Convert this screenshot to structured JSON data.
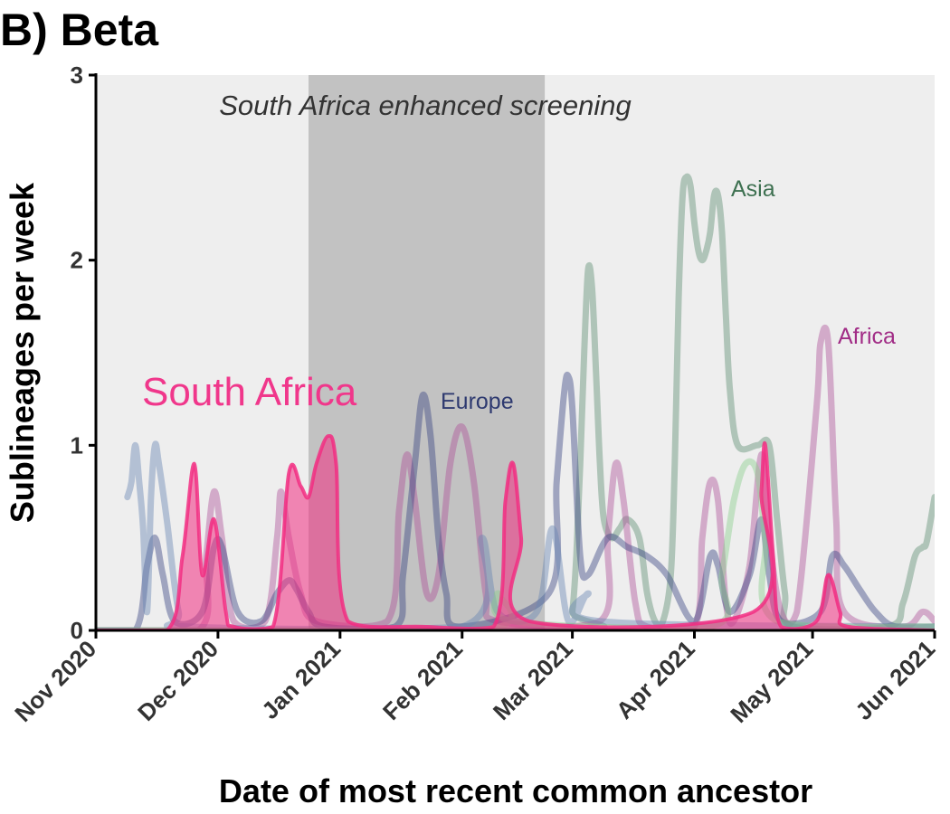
{
  "panel_title": "B) Beta",
  "chart_data": {
    "type": "line",
    "title": "",
    "xlabel": "Date of most recent common ancestor",
    "ylabel": "Sublineages per week",
    "x_range": [
      "2020-10-31",
      "2021-06-01"
    ],
    "ylim": [
      0,
      3
    ],
    "yticks": [
      0,
      1,
      2,
      3
    ],
    "xticks": [
      {
        "date": "2020-10-31",
        "label": "Nov 2020"
      },
      {
        "date": "2020-12-01",
        "label": "Dec 2020"
      },
      {
        "date": "2021-01-01",
        "label": "Jan 2021"
      },
      {
        "date": "2021-02-01",
        "label": "Feb 2021"
      },
      {
        "date": "2021-03-01",
        "label": "Mar 2021"
      },
      {
        "date": "2021-04-01",
        "label": "Apr 2021"
      },
      {
        "date": "2021-05-01",
        "label": "May 2021"
      },
      {
        "date": "2021-06-01",
        "label": "Jun 2021"
      }
    ],
    "shaded_region": {
      "start": "2020-12-24",
      "end": "2021-02-22",
      "label": "South Africa enhanced screening"
    },
    "background_color": "#eeeeee",
    "shade_color": "#c2c2c2",
    "grid": false,
    "series": [
      {
        "name": "Asia",
        "color": "#6f9a82",
        "opacity": 0.5,
        "width": 7,
        "points": [
          [
            "2020-10-31",
            0
          ],
          [
            "2021-02-28",
            0
          ],
          [
            "2021-03-01",
            0.1
          ],
          [
            "2021-03-02",
            0.4
          ],
          [
            "2021-03-03",
            0.9
          ],
          [
            "2021-03-04",
            1.5
          ],
          [
            "2021-03-05",
            1.95
          ],
          [
            "2021-03-06",
            1.85
          ],
          [
            "2021-03-07",
            1.4
          ],
          [
            "2021-03-08",
            0.9
          ],
          [
            "2021-03-09",
            0.6
          ],
          [
            "2021-03-11",
            0.5
          ],
          [
            "2021-03-13",
            0.55
          ],
          [
            "2021-03-15",
            0.6
          ],
          [
            "2021-03-18",
            0.5
          ],
          [
            "2021-03-20",
            0.2
          ],
          [
            "2021-03-22",
            0.05
          ],
          [
            "2021-03-24",
            0.05
          ],
          [
            "2021-03-26",
            0.3
          ],
          [
            "2021-03-27",
            0.9
          ],
          [
            "2021-03-28",
            1.8
          ],
          [
            "2021-03-29",
            2.35
          ],
          [
            "2021-03-30",
            2.45
          ],
          [
            "2021-03-31",
            2.4
          ],
          [
            "2021-04-01",
            2.2
          ],
          [
            "2021-04-02",
            2.05
          ],
          [
            "2021-04-03",
            2.0
          ],
          [
            "2021-04-04",
            2.05
          ],
          [
            "2021-04-05",
            2.15
          ],
          [
            "2021-04-06",
            2.35
          ],
          [
            "2021-04-07",
            2.35
          ],
          [
            "2021-04-08",
            2.15
          ],
          [
            "2021-04-09",
            1.7
          ],
          [
            "2021-04-10",
            1.3
          ],
          [
            "2021-04-12",
            1.0
          ],
          [
            "2021-04-17",
            1.0
          ],
          [
            "2021-04-20",
            1.0
          ],
          [
            "2021-04-22",
            0.6
          ],
          [
            "2021-04-24",
            0.2
          ],
          [
            "2021-04-26",
            0.02
          ],
          [
            "2021-05-20",
            0.02
          ],
          [
            "2021-05-24",
            0.15
          ],
          [
            "2021-05-27",
            0.4
          ],
          [
            "2021-05-29",
            0.45
          ],
          [
            "2021-05-30",
            0.48
          ],
          [
            "2021-06-01",
            0.72
          ]
        ]
      },
      {
        "name": "Africa",
        "color": "#b0569c",
        "opacity": 0.45,
        "width": 7,
        "points": [
          [
            "2020-10-31",
            0
          ],
          [
            "2020-11-26",
            0
          ],
          [
            "2020-11-28",
            0.4
          ],
          [
            "2020-11-30",
            0.75
          ],
          [
            "2020-12-02",
            0.5
          ],
          [
            "2020-12-05",
            0.05
          ],
          [
            "2020-12-13",
            0.05
          ],
          [
            "2020-12-16",
            0.5
          ],
          [
            "2020-12-17",
            0.75
          ],
          [
            "2020-12-19",
            0.5
          ],
          [
            "2020-12-22",
            0.2
          ],
          [
            "2020-12-26",
            0.05
          ],
          [
            "2021-01-13",
            0.05
          ],
          [
            "2021-01-16",
            0.65
          ],
          [
            "2021-01-18",
            0.95
          ],
          [
            "2021-01-20",
            0.7
          ],
          [
            "2021-01-23",
            0.2
          ],
          [
            "2021-01-26",
            0.3
          ],
          [
            "2021-01-29",
            0.9
          ],
          [
            "2021-02-01",
            1.1
          ],
          [
            "2021-02-04",
            0.8
          ],
          [
            "2021-02-07",
            0.2
          ],
          [
            "2021-02-10",
            0.05
          ],
          [
            "2021-03-08",
            0.05
          ],
          [
            "2021-03-10",
            0.5
          ],
          [
            "2021-03-12",
            0.9
          ],
          [
            "2021-03-14",
            0.7
          ],
          [
            "2021-03-17",
            0.15
          ],
          [
            "2021-03-20",
            0.02
          ],
          [
            "2021-04-01",
            0.02
          ],
          [
            "2021-04-03",
            0.5
          ],
          [
            "2021-04-05",
            0.8
          ],
          [
            "2021-04-07",
            0.7
          ],
          [
            "2021-04-09",
            0.15
          ],
          [
            "2021-04-11",
            0.05
          ],
          [
            "2021-04-15",
            0.35
          ],
          [
            "2021-04-18",
            0.95
          ],
          [
            "2021-04-20",
            0.5
          ],
          [
            "2021-04-23",
            0.1
          ],
          [
            "2021-04-27",
            0.1
          ],
          [
            "2021-05-02",
            1.2
          ],
          [
            "2021-05-03",
            1.55
          ],
          [
            "2021-05-05",
            1.55
          ],
          [
            "2021-05-07",
            0.6
          ],
          [
            "2021-05-09",
            0.1
          ],
          [
            "2021-05-24",
            0.02
          ],
          [
            "2021-05-29",
            0.1
          ],
          [
            "2021-06-01",
            0.05
          ]
        ]
      },
      {
        "name": "Europe",
        "color": "#3e4a84",
        "opacity": 0.45,
        "width": 7,
        "points": [
          [
            "2020-10-31",
            0
          ],
          [
            "2020-11-10",
            0
          ],
          [
            "2020-11-13",
            0.35
          ],
          [
            "2020-11-15",
            0.5
          ],
          [
            "2020-11-17",
            0.3
          ],
          [
            "2020-11-20",
            0.05
          ],
          [
            "2020-11-27",
            0.1
          ],
          [
            "2020-11-30",
            0.45
          ],
          [
            "2020-12-02",
            0.45
          ],
          [
            "2020-12-06",
            0.1
          ],
          [
            "2020-12-12",
            0.05
          ],
          [
            "2020-12-16",
            0.2
          ],
          [
            "2020-12-19",
            0.27
          ],
          [
            "2020-12-21",
            0.22
          ],
          [
            "2020-12-24",
            0.1
          ],
          [
            "2020-12-28",
            0.02
          ],
          [
            "2021-01-15",
            0.02
          ],
          [
            "2021-01-17",
            0.3
          ],
          [
            "2021-01-20",
            0.9
          ],
          [
            "2021-01-22",
            1.27
          ],
          [
            "2021-01-24",
            1.05
          ],
          [
            "2021-01-26",
            0.5
          ],
          [
            "2021-01-28",
            0.2
          ],
          [
            "2021-01-31",
            0.02
          ],
          [
            "2021-02-23",
            0.2
          ],
          [
            "2021-02-25",
            0.8
          ],
          [
            "2021-02-27",
            1.3
          ],
          [
            "2021-02-28",
            1.37
          ],
          [
            "2021-03-01",
            1.2
          ],
          [
            "2021-03-03",
            0.4
          ],
          [
            "2021-03-05",
            0.3
          ],
          [
            "2021-03-10",
            0.5
          ],
          [
            "2021-03-15",
            0.45
          ],
          [
            "2021-03-20",
            0.4
          ],
          [
            "2021-03-25",
            0.3
          ],
          [
            "2021-04-01",
            0.05
          ],
          [
            "2021-04-05",
            0.4
          ],
          [
            "2021-04-07",
            0.35
          ],
          [
            "2021-04-10",
            0.1
          ],
          [
            "2021-04-15",
            0.3
          ],
          [
            "2021-04-18",
            0.6
          ],
          [
            "2021-04-20",
            0.3
          ],
          [
            "2021-04-23",
            0.05
          ],
          [
            "2021-05-03",
            0.1
          ],
          [
            "2021-05-06",
            0.4
          ],
          [
            "2021-05-09",
            0.35
          ],
          [
            "2021-05-13",
            0.22
          ],
          [
            "2021-05-17",
            0.1
          ],
          [
            "2021-05-22",
            0.02
          ],
          [
            "2021-06-01",
            0.02
          ]
        ]
      },
      {
        "name": "",
        "color": "#6b88b4",
        "opacity": 0.45,
        "width": 7,
        "points": [
          [
            "2020-11-08",
            0.72
          ],
          [
            "2020-11-09",
            0.8
          ],
          [
            "2020-11-10",
            1.0
          ],
          [
            "2020-11-11",
            0.8
          ],
          [
            "2020-11-12",
            0.55
          ],
          [
            "2020-11-13",
            0.1
          ],
          [
            "2020-11-14",
            0.72
          ],
          [
            "2020-11-15",
            1.0
          ],
          [
            "2020-11-16",
            0.9
          ],
          [
            "2020-11-18",
            0.6
          ],
          [
            "2020-11-21",
            0.1
          ],
          [
            "2020-11-24",
            0.02
          ],
          [
            "2021-02-01",
            0.02
          ],
          [
            "2021-02-06",
            0.5
          ],
          [
            "2021-02-10",
            0.1
          ],
          [
            "2021-02-20",
            0.1
          ],
          [
            "2021-02-24",
            0.55
          ],
          [
            "2021-02-28",
            0.05
          ],
          [
            "2021-03-05",
            0.2
          ],
          [
            "2021-03-08",
            0.05
          ],
          [
            "2021-06-01",
            0.02
          ]
        ]
      },
      {
        "name": "",
        "color": "#8ccf8e",
        "opacity": 0.45,
        "width": 7,
        "points": [
          [
            "2020-10-31",
            0
          ],
          [
            "2021-02-05",
            0
          ],
          [
            "2021-02-10",
            0.2
          ],
          [
            "2021-02-14",
            0.05
          ],
          [
            "2021-04-05",
            0.02
          ],
          [
            "2021-04-08",
            0.3
          ],
          [
            "2021-04-11",
            0.7
          ],
          [
            "2021-04-14",
            0.9
          ],
          [
            "2021-04-17",
            0.85
          ],
          [
            "2021-04-19",
            0.5
          ],
          [
            "2021-04-22",
            0.05
          ],
          [
            "2021-06-01",
            0.02
          ]
        ]
      },
      {
        "name": "South Africa",
        "color": "#f22d81",
        "opacity": 0.85,
        "width": 4,
        "points": [
          [
            "2020-10-31",
            0
          ],
          [
            "2020-11-18",
            0
          ],
          [
            "2020-11-22",
            0.4
          ],
          [
            "2020-11-25",
            0.9
          ],
          [
            "2020-11-27",
            0.3
          ],
          [
            "2020-11-30",
            0.6
          ],
          [
            "2020-12-03",
            0.1
          ],
          [
            "2020-12-05",
            0.02
          ],
          [
            "2020-12-15",
            0.02
          ],
          [
            "2020-12-19",
            0.85
          ],
          [
            "2020-12-22",
            0.78
          ],
          [
            "2020-12-24",
            0.72
          ],
          [
            "2020-12-26",
            0.9
          ],
          [
            "2020-12-29",
            1.05
          ],
          [
            "2020-12-31",
            0.9
          ],
          [
            "2021-01-03",
            0.05
          ],
          [
            "2021-01-22",
            0.02
          ],
          [
            "2021-02-09",
            0.02
          ],
          [
            "2021-02-12",
            0.7
          ],
          [
            "2021-02-14",
            0.9
          ],
          [
            "2021-02-16",
            0.5
          ],
          [
            "2021-02-18",
            0.05
          ],
          [
            "2021-04-16",
            0.1
          ],
          [
            "2021-04-18",
            0.75
          ],
          [
            "2021-04-19",
            1.0
          ],
          [
            "2021-04-21",
            0.4
          ],
          [
            "2021-04-23",
            0.02
          ],
          [
            "2021-05-02",
            0.05
          ],
          [
            "2021-05-05",
            0.3
          ],
          [
            "2021-05-08",
            0.1
          ],
          [
            "2021-05-10",
            0.02
          ],
          [
            "2021-06-01",
            0
          ]
        ]
      }
    ],
    "annotations": [
      {
        "text": "South Africa",
        "color": "#f0378b",
        "size": 44
      },
      {
        "text": "Asia",
        "color": "#3d7050",
        "size": 25
      },
      {
        "text": "Africa",
        "color": "#a12c86",
        "size": 25
      },
      {
        "text": "Europe",
        "color": "#2e3a70",
        "size": 25
      }
    ]
  }
}
